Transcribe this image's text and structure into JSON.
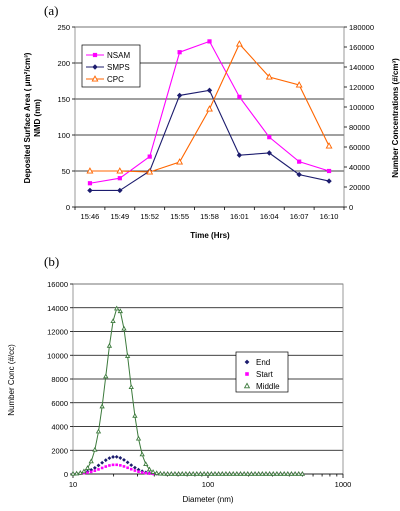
{
  "chart_data": [
    {
      "panel_label": "(a)",
      "type": "line",
      "xlabel": "Time (Hrs)",
      "ylabel": "Deposited Surface Area (μm²/cm³) NMD (nm)",
      "y2label": "Number Concentrations (#/cm³)",
      "ylabel_lines": [
        "Deposited Surface Area ( μm²/cm³)",
        "NMD (nm)"
      ],
      "y2label_text": "Number Concentrations (#/cm³)",
      "categories": [
        "15:46",
        "15:49",
        "15:52",
        "15:55",
        "15:58",
        "16:01",
        "16:04",
        "16:07",
        "16:10"
      ],
      "ylim": [
        0,
        250
      ],
      "y2lim": [
        0,
        180000
      ],
      "yticks": [
        "0",
        "50",
        "100",
        "150",
        "200",
        "250"
      ],
      "y2ticks": [
        "0",
        "20000",
        "40000",
        "60000",
        "80000",
        "100000",
        "120000",
        "140000",
        "160000",
        "180000"
      ],
      "grid": true,
      "legend_position": "top-left",
      "series": [
        {
          "name": "NSAM",
          "axis": "left",
          "color": "#ff00ff",
          "marker": "square",
          "values": [
            33,
            40,
            70,
            215,
            230,
            153,
            97,
            63,
            50
          ]
        },
        {
          "name": "SMPS",
          "axis": "left",
          "color": "#1c1c6e",
          "marker": "diamond",
          "values": [
            23,
            23,
            50,
            155,
            162,
            72,
            75,
            45,
            36
          ]
        },
        {
          "name": "CPC",
          "axis": "right",
          "color": "#ff6600",
          "marker": "triangle",
          "values": [
            36000,
            36000,
            35000,
            45000,
            98000,
            163000,
            130000,
            122000,
            61000
          ]
        }
      ]
    },
    {
      "panel_label": "(b)",
      "type": "scatter",
      "xlabel": "Diameter (nm)",
      "ylabel": "Number Conc (#/cc)",
      "xscale": "log",
      "xlim": [
        10,
        1000
      ],
      "xticks": [
        "10",
        "100",
        "1000"
      ],
      "ylim": [
        0,
        16000
      ],
      "yticks": [
        "0",
        "2000",
        "4000",
        "6000",
        "8000",
        "10000",
        "12000",
        "14000",
        "16000"
      ],
      "grid": true,
      "legend_position": "right",
      "series": [
        {
          "name": "End",
          "color": "#1c1c6e",
          "marker": "diamond",
          "peak": 1450,
          "mu": 20.5,
          "sigma": 0.24
        },
        {
          "name": "Start",
          "color": "#ff00ff",
          "marker": "square",
          "peak": 780,
          "mu": 20.5,
          "sigma": 0.24
        },
        {
          "name": "Middle",
          "color": "#3c7a3c",
          "marker": "triangle",
          "peak": 14000,
          "mu": 21.5,
          "sigma": 0.2
        }
      ]
    }
  ]
}
